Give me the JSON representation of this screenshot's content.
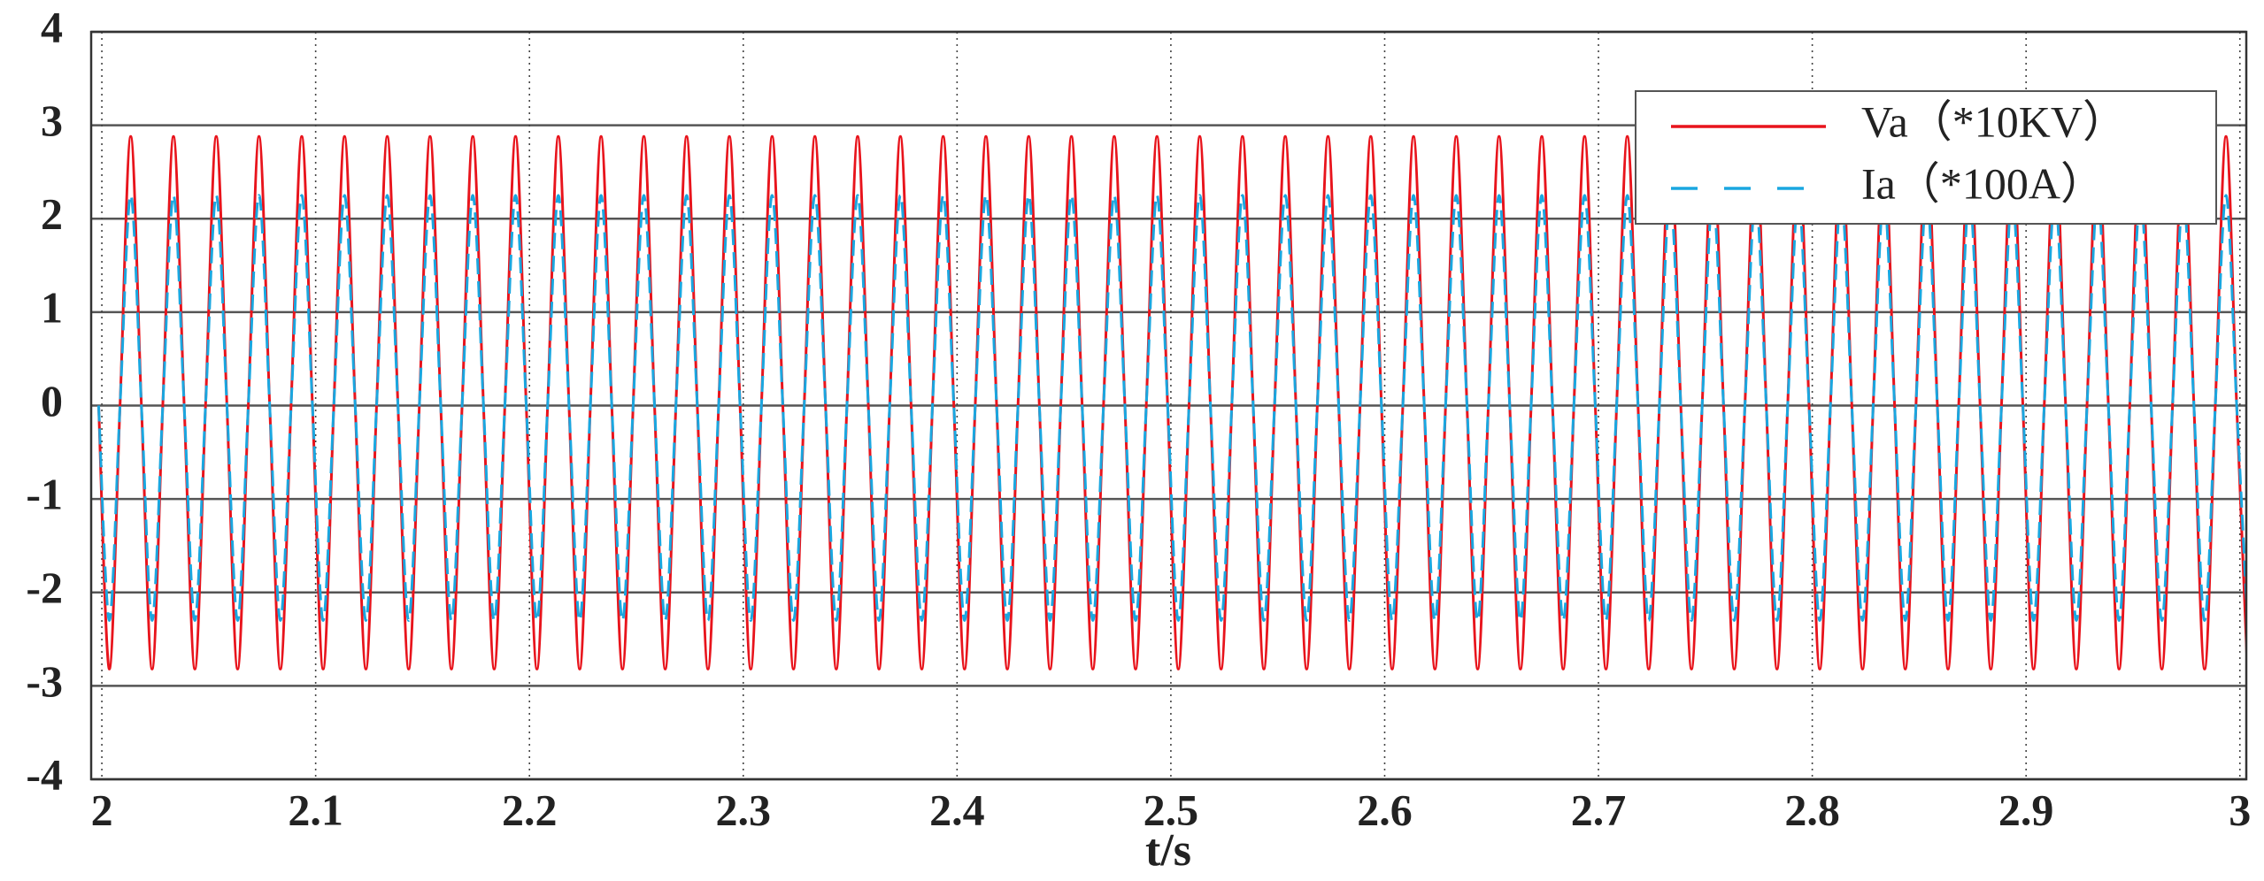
{
  "chart_data": {
    "type": "line",
    "xlabel": "t/s",
    "x": [
      1.9985,
      2.0035,
      2.0085,
      2.0135,
      2.0185,
      2.0235,
      2.0285,
      2.0335,
      2.0385,
      2.0435,
      2.0485,
      2.0535,
      2.0585,
      2.0635,
      2.0685,
      2.0735,
      2.0785,
      2.0835,
      2.0885,
      2.0935,
      2.0985,
      2.1035,
      2.1085,
      2.1135,
      2.1185,
      2.1235,
      2.1285,
      2.1335,
      2.1385,
      2.1435,
      2.1485,
      2.1535,
      2.1585,
      2.1635,
      2.1685,
      2.1735,
      2.1785,
      2.1835,
      2.1885,
      2.1935,
      2.1985,
      2.2035,
      2.2085,
      2.2135,
      2.2185,
      2.2235,
      2.2285,
      2.2335,
      2.2385,
      2.2435,
      2.2485,
      2.2535,
      2.2585,
      2.2635,
      2.2685,
      2.2735,
      2.2785,
      2.2835,
      2.2885,
      2.2935,
      2.2985,
      2.3035,
      2.3085,
      2.3135,
      2.3185,
      2.3235,
      2.3285,
      2.3335,
      2.3385,
      2.3435,
      2.3485,
      2.3535,
      2.3585,
      2.3635,
      2.3685,
      2.3735,
      2.3785,
      2.3835,
      2.3885,
      2.3935,
      2.3985,
      2.4035,
      2.4085,
      2.4135,
      2.4185,
      2.4235,
      2.4285,
      2.4335,
      2.4385,
      2.4435,
      2.4485,
      2.4535,
      2.4585,
      2.4635,
      2.4685,
      2.4735,
      2.4785,
      2.4835,
      2.4885,
      2.4935,
      2.4985,
      2.5035,
      2.5085,
      2.5135,
      2.5185,
      2.5235,
      2.5285,
      2.5335,
      2.5385,
      2.5435,
      2.5485,
      2.5535,
      2.5585,
      2.5635,
      2.5685,
      2.5735,
      2.5785,
      2.5835,
      2.5885,
      2.5935,
      2.5985,
      2.6035,
      2.6085,
      2.6135,
      2.6185,
      2.6235,
      2.6285,
      2.6335,
      2.6385,
      2.6435,
      2.6485,
      2.6535,
      2.6585,
      2.6635,
      2.6685,
      2.6735,
      2.6785,
      2.6835,
      2.6885,
      2.6935,
      2.6985,
      2.7035,
      2.7085,
      2.7135,
      2.7185,
      2.7235,
      2.7285,
      2.7335,
      2.7385,
      2.7435,
      2.7485,
      2.7535,
      2.7585,
      2.7635,
      2.7685,
      2.7735,
      2.7785,
      2.7835,
      2.7885,
      2.7935,
      2.7985,
      2.8035,
      2.8085,
      2.8135,
      2.8185,
      2.8235,
      2.8285,
      2.8335,
      2.8385,
      2.8435,
      2.8485,
      2.8535,
      2.8585,
      2.8635,
      2.8685,
      2.8735,
      2.8785,
      2.8835,
      2.8885,
      2.8935,
      2.8985,
      2.9035,
      2.9085,
      2.9135,
      2.9185,
      2.9235,
      2.9285,
      2.9335,
      2.9385,
      2.9435,
      2.9485,
      2.9535,
      2.9585,
      2.9635,
      2.9685,
      2.9735,
      2.9785,
      2.9835,
      2.9885,
      2.9935,
      2.9985,
      3.0035
    ],
    "series": [
      {
        "name": "Va（*10KV）",
        "color": "#e8141c",
        "dash": false,
        "values": [
          0,
          -2.82,
          0,
          2.88,
          0,
          -2.82,
          0,
          2.88,
          0,
          -2.82,
          0,
          2.88,
          0,
          -2.82,
          0,
          2.88,
          0,
          -2.82,
          0,
          2.88,
          0,
          -2.82,
          0,
          2.88,
          0,
          -2.82,
          0,
          2.88,
          0,
          -2.82,
          0,
          2.88,
          0,
          -2.82,
          0,
          2.88,
          0,
          -2.82,
          0,
          2.88,
          0,
          -2.82,
          0,
          2.88,
          0,
          -2.82,
          0,
          2.88,
          0,
          -2.82,
          0,
          2.88,
          0,
          -2.82,
          0,
          2.88,
          0,
          -2.82,
          0,
          2.88,
          0,
          -2.82,
          0,
          2.88,
          0,
          -2.82,
          0,
          2.88,
          0,
          -2.82,
          0,
          2.88,
          0,
          -2.82,
          0,
          2.88,
          0,
          -2.82,
          0,
          2.88,
          0,
          -2.82,
          0,
          2.88,
          0,
          -2.82,
          0,
          2.88,
          0,
          -2.82,
          0,
          2.88,
          0,
          -2.82,
          0,
          2.88,
          0,
          -2.82,
          0,
          2.88,
          0,
          -2.82,
          0,
          2.88,
          0,
          -2.82,
          0,
          2.88,
          0,
          -2.82,
          0,
          2.88,
          0,
          -2.82,
          0,
          2.88,
          0,
          -2.82,
          0,
          2.88,
          0,
          -2.82,
          0,
          2.88,
          0,
          -2.82,
          0,
          2.88,
          0,
          -2.82,
          0,
          2.88,
          0,
          -2.82,
          0,
          2.88,
          0,
          -2.82,
          0,
          2.88,
          0,
          -2.82,
          0,
          2.88,
          0,
          -2.82,
          0,
          2.88,
          0,
          -2.82,
          0,
          2.88,
          0,
          -2.82,
          0,
          2.88,
          0,
          -2.82,
          0,
          2.88,
          0,
          -2.82,
          0,
          2.88,
          0,
          -2.82,
          0,
          2.88,
          0,
          -2.82,
          0,
          2.88,
          0,
          -2.82,
          0,
          2.88,
          0,
          -2.82,
          0,
          2.88,
          0,
          -2.82,
          0,
          2.88,
          0,
          -2.82,
          0,
          2.88,
          0,
          -2.82,
          0,
          2.88,
          0,
          -2.82,
          0,
          2.88,
          0,
          -2.82,
          0,
          2.88,
          0,
          -2.82
        ]
      },
      {
        "name": "Ia（*100A）",
        "color": "#1aa7e0",
        "dash": true,
        "values": [
          0,
          -2.3,
          0,
          2.25,
          0,
          -2.3,
          0,
          2.25,
          0,
          -2.3,
          0,
          2.25,
          0,
          -2.3,
          0,
          2.25,
          0,
          -2.3,
          0,
          2.25,
          0,
          -2.3,
          0,
          2.25,
          0,
          -2.3,
          0,
          2.25,
          0,
          -2.3,
          0,
          2.25,
          0,
          -2.3,
          0,
          2.25,
          0,
          -2.3,
          0,
          2.25,
          0,
          -2.3,
          0,
          2.25,
          0,
          -2.3,
          0,
          2.25,
          0,
          -2.3,
          0,
          2.25,
          0,
          -2.3,
          0,
          2.25,
          0,
          -2.3,
          0,
          2.25,
          0,
          -2.3,
          0,
          2.25,
          0,
          -2.3,
          0,
          2.25,
          0,
          -2.3,
          0,
          2.25,
          0,
          -2.3,
          0,
          2.25,
          0,
          -2.3,
          0,
          2.25,
          0,
          -2.3,
          0,
          2.25,
          0,
          -2.3,
          0,
          2.25,
          0,
          -2.3,
          0,
          2.25,
          0,
          -2.3,
          0,
          2.25,
          0,
          -2.3,
          0,
          2.25,
          0,
          -2.3,
          0,
          2.25,
          0,
          -2.3,
          0,
          2.25,
          0,
          -2.3,
          0,
          2.25,
          0,
          -2.3,
          0,
          2.25,
          0,
          -2.3,
          0,
          2.25,
          0,
          -2.3,
          0,
          2.25,
          0,
          -2.3,
          0,
          2.25,
          0,
          -2.3,
          0,
          2.25,
          0,
          -2.3,
          0,
          2.25,
          0,
          -2.3,
          0,
          2.25,
          0,
          -2.3,
          0,
          2.25,
          0,
          -2.3,
          0,
          2.25,
          0,
          -2.3,
          0,
          2.25,
          0,
          -2.3,
          0,
          2.25,
          0,
          -2.3,
          0,
          2.25,
          0,
          -2.3,
          0,
          2.25,
          0,
          -2.3,
          0,
          2.25,
          0,
          -2.3,
          0,
          2.25,
          0,
          -2.3,
          0,
          2.25,
          0,
          -2.3,
          0,
          2.25,
          0,
          -2.3,
          0,
          2.25,
          0,
          -2.3,
          0,
          2.25,
          0,
          -2.3,
          0,
          2.25,
          0,
          -2.3,
          0,
          2.25,
          0,
          -2.3,
          0,
          2.25,
          0,
          -2.3
        ]
      }
    ],
    "xlim": [
      1.995,
      3.003
    ],
    "xticks": [
      2,
      2.1,
      2.2,
      2.3,
      2.4,
      2.5,
      2.6,
      2.7,
      2.8,
      2.9,
      3
    ],
    "ylim": [
      -4,
      4
    ],
    "yticks": [
      -4,
      -3,
      -2,
      -1,
      0,
      1,
      2,
      3,
      4
    ],
    "grid": true,
    "legend": "upper right"
  }
}
